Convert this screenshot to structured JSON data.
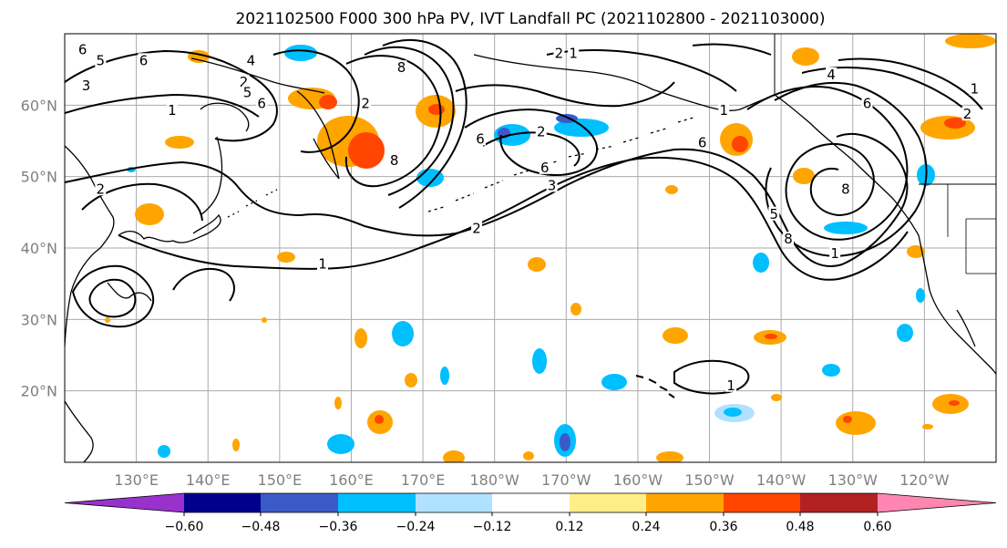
{
  "title": "2021102500 F000 300 hPa PV, IVT Landfall PC (2021102800 - 2021103000)",
  "map": {
    "lon_range": [
      120,
      250
    ],
    "lat_range": [
      10,
      70
    ],
    "lat_ticks": [
      {
        "value": 20,
        "label": "20°N"
      },
      {
        "value": 30,
        "label": "30°N"
      },
      {
        "value": 40,
        "label": "40°N"
      },
      {
        "value": 50,
        "label": "50°N"
      },
      {
        "value": 60,
        "label": "60°N"
      }
    ],
    "lon_ticks": [
      {
        "value": 130,
        "label": "130°E"
      },
      {
        "value": 140,
        "label": "140°E"
      },
      {
        "value": 150,
        "label": "150°E"
      },
      {
        "value": 160,
        "label": "160°E"
      },
      {
        "value": 170,
        "label": "170°E"
      },
      {
        "value": 180,
        "label": "180°W"
      },
      {
        "value": 190,
        "label": "170°W"
      },
      {
        "value": 200,
        "label": "160°W"
      },
      {
        "value": 210,
        "label": "150°W"
      },
      {
        "value": 220,
        "label": "140°W"
      },
      {
        "value": 230,
        "label": "130°W"
      },
      {
        "value": 240,
        "label": "120°W"
      }
    ],
    "gridlines": true,
    "contour_labels": [
      {
        "lon": 122.5,
        "lat": 67.5,
        "text": "6"
      },
      {
        "lon": 125,
        "lat": 66,
        "text": "5"
      },
      {
        "lon": 131,
        "lat": 66,
        "text": "6"
      },
      {
        "lon": 123,
        "lat": 62.5,
        "text": "3"
      },
      {
        "lon": 135,
        "lat": 59,
        "text": "1"
      },
      {
        "lon": 146,
        "lat": 66,
        "text": "4"
      },
      {
        "lon": 145,
        "lat": 63,
        "text": "2"
      },
      {
        "lon": 145.5,
        "lat": 61.5,
        "text": "5"
      },
      {
        "lon": 147.5,
        "lat": 60,
        "text": "6"
      },
      {
        "lon": 167,
        "lat": 65,
        "text": "8"
      },
      {
        "lon": 162,
        "lat": 60,
        "text": "2"
      },
      {
        "lon": 166,
        "lat": 52,
        "text": "8"
      },
      {
        "lon": 125,
        "lat": 48,
        "text": "2"
      },
      {
        "lon": 189,
        "lat": 67,
        "text": "2"
      },
      {
        "lon": 191,
        "lat": 67,
        "text": "1"
      },
      {
        "lon": 178,
        "lat": 55,
        "text": "6"
      },
      {
        "lon": 186.5,
        "lat": 56,
        "text": "2"
      },
      {
        "lon": 187,
        "lat": 51,
        "text": "6"
      },
      {
        "lon": 188,
        "lat": 48.5,
        "text": "3"
      },
      {
        "lon": 177.5,
        "lat": 42.5,
        "text": "2"
      },
      {
        "lon": 156,
        "lat": 37.5,
        "text": "1"
      },
      {
        "lon": 212,
        "lat": 59,
        "text": "1"
      },
      {
        "lon": 209,
        "lat": 54.5,
        "text": "6"
      },
      {
        "lon": 227,
        "lat": 64,
        "text": "4"
      },
      {
        "lon": 232,
        "lat": 60,
        "text": "6"
      },
      {
        "lon": 247,
        "lat": 62,
        "text": "1"
      },
      {
        "lon": 246,
        "lat": 58.5,
        "text": "2"
      },
      {
        "lon": 229,
        "lat": 48,
        "text": "8"
      },
      {
        "lon": 219,
        "lat": 44.5,
        "text": "5"
      },
      {
        "lon": 221,
        "lat": 41,
        "text": "8"
      },
      {
        "lon": 227.5,
        "lat": 39,
        "text": "1"
      },
      {
        "lon": 213,
        "lat": 20.5,
        "text": "1"
      }
    ]
  },
  "colorbar": {
    "tick_labels": [
      "−0.60",
      "−0.48",
      "−0.36",
      "−0.24",
      "−0.12",
      "0.12",
      "0.24",
      "0.36",
      "0.48",
      "0.60"
    ],
    "colors": [
      "#9932cc",
      "#00008b",
      "#3a5bc7",
      "#00bfff",
      "#b0e2ff",
      "#ffffff",
      "#ffee88",
      "#ffa500",
      "#ff4500",
      "#b22222",
      "#ff86b0"
    ]
  },
  "colors": {
    "text": "#000000",
    "tick_text": "#7f7f7f",
    "gridline": "#aaaaaa"
  }
}
